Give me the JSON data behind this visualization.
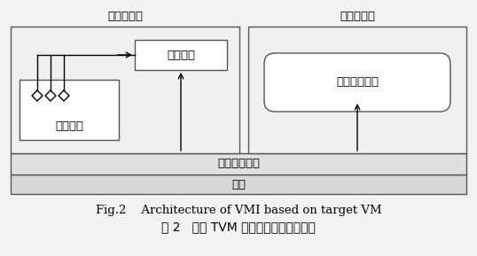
{
  "title_en": "Fig.2    Architecture of VMI based on target VM",
  "title_cn": "图 2   基于 TVM 的虚拟机自省法架构图",
  "label_target_vm": "目标虚拟机",
  "label_secure_vm": "安全虚拟机",
  "label_info_transfer": "信息传递",
  "label_info_capture": "信息捕获",
  "label_security_module": "安全监控模块",
  "label_vm_manager": "虚拟机管理器",
  "label_hardware": "硬件",
  "bg_color": "#f2f2f2",
  "box_edge": "#555555",
  "box_fill_outer": "#f0f0f0",
  "box_fill_inner": "#ffffff",
  "bar_fill_manager": "#e0e0e0",
  "bar_fill_hardware": "#d8d8d8",
  "font_size_label": 9.5,
  "font_size_caption_en": 9.5,
  "font_size_caption_cn": 10
}
